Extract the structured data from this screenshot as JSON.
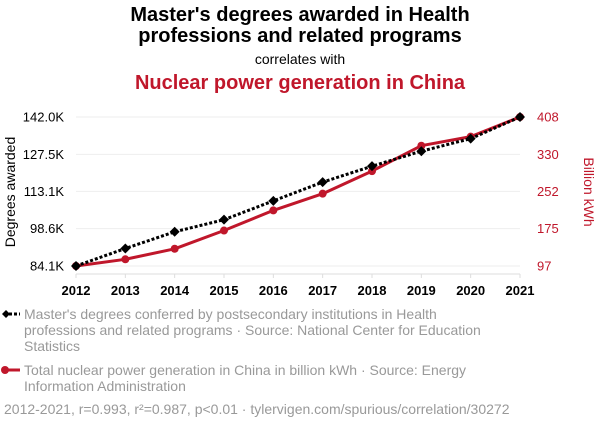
{
  "chart_data": {
    "type": "line",
    "title": "Master's degrees awarded in Health professions and related programs",
    "title_lines": [
      "Master's degrees awarded in Health",
      "professions and related programs"
    ],
    "subtitle": "correlates with",
    "title2": "Nuclear power generation in China",
    "x": [
      2012,
      2013,
      2014,
      2015,
      2016,
      2017,
      2018,
      2019,
      2020,
      2021
    ],
    "x_tick_labels": [
      "2012",
      "2013",
      "2014",
      "2015",
      "2016",
      "2017",
      "2018",
      "2019",
      "2020",
      "2021"
    ],
    "y_left": {
      "label": "Degrees awarded",
      "ticks": [
        84100,
        98600,
        113100,
        127500,
        142000
      ],
      "tick_labels": [
        "84.1K",
        "98.6K",
        "113.1K",
        "127.5K",
        "142.0K"
      ],
      "range": [
        84100,
        142000
      ]
    },
    "y_right": {
      "label": "Billion kWh",
      "ticks": [
        97,
        175,
        252,
        330,
        408
      ],
      "tick_labels": [
        "97",
        "175",
        "252",
        "330",
        "408"
      ],
      "range": [
        97,
        408
      ]
    },
    "series": [
      {
        "name": "Master's degrees conferred by postsecondary institutions in Health professions and related programs · Source: National Center for Education Statistics",
        "legend_lines": [
          "Master's degrees conferred by postsecondary institutions in Health",
          "professions and related programs · Source: National Center for Education",
          "Statistics"
        ],
        "axis": "left",
        "color": "#000000",
        "values": [
          84100,
          90900,
          97400,
          102100,
          109400,
          116700,
          122900,
          128700,
          133600,
          142000
        ]
      },
      {
        "name": "Total nuclear power generation in China in billion kWh · Source: Energy Information Administration",
        "legend_lines": [
          "Total nuclear power generation in China in billion kWh · Source: Energy",
          "Information Administration"
        ],
        "axis": "right",
        "color": "#c0172b",
        "values": [
          97,
          111,
          133,
          171,
          213,
          248,
          295,
          348,
          367,
          408
        ]
      }
    ],
    "footer": "2012-2021, r=0.993, r²=0.987, p<0.01 · tylervigen.com/spurious/correlation/30272",
    "grid": true,
    "colors": {
      "primary": "#000000",
      "secondary": "#c0172b",
      "muted": "#999999"
    }
  }
}
